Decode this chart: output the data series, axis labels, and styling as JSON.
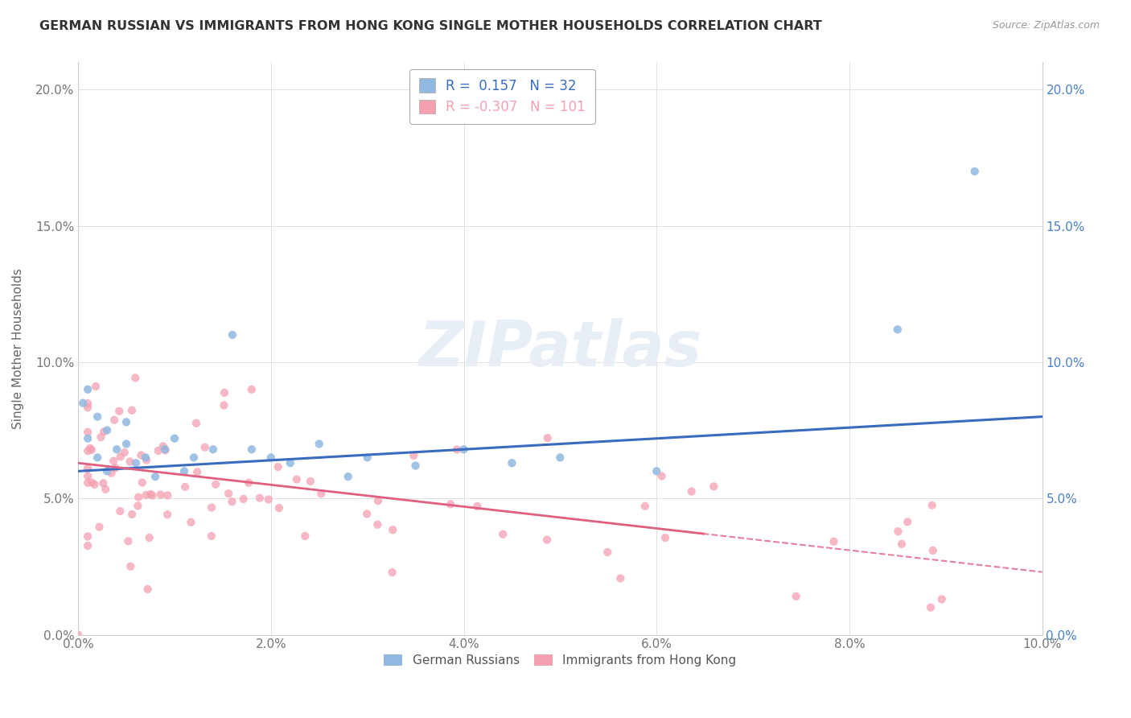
{
  "title": "GERMAN RUSSIAN VS IMMIGRANTS FROM HONG KONG SINGLE MOTHER HOUSEHOLDS CORRELATION CHART",
  "source": "Source: ZipAtlas.com",
  "ylabel": "Single Mother Households",
  "xlim": [
    0.0,
    0.1
  ],
  "ylim": [
    0.0,
    0.21
  ],
  "R1": 0.157,
  "N1": 32,
  "R2": -0.307,
  "N2": 101,
  "color1": "#90b8e0",
  "color2": "#f4a0b0",
  "line1_color": "#3a6bbf",
  "line2_color": "#e06080",
  "watermark_color": "#e8eef5",
  "legend_labels": [
    "German Russians",
    "Immigrants from Hong Kong"
  ],
  "right_ytick_color1": "#4a80cc",
  "right_ytick_color2": "#cc5577"
}
